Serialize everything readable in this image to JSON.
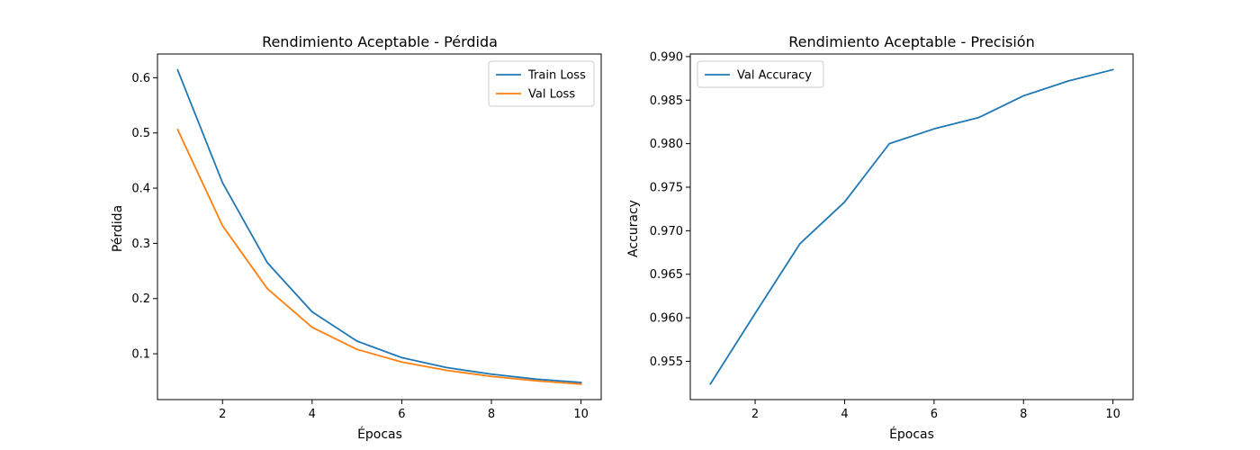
{
  "chart_data": [
    {
      "type": "line",
      "title": "Rendimiento Aceptable - Pérdida",
      "xlabel": "Épocas",
      "ylabel": "Pérdida",
      "xlim": [
        0.55,
        10.45
      ],
      "ylim": [
        0.017,
        0.643
      ],
      "xticks": [
        2,
        4,
        6,
        8,
        10
      ],
      "yticks": [
        0.1,
        0.2,
        0.3,
        0.4,
        0.5,
        0.6
      ],
      "grid": false,
      "legend_position": "top-right",
      "x": [
        1,
        2,
        3,
        4,
        5,
        6,
        7,
        8,
        9,
        10
      ],
      "series": [
        {
          "name": "Train Loss",
          "color": "#1f77b4",
          "values": [
            0.614,
            0.41,
            0.265,
            0.176,
            0.123,
            0.093,
            0.075,
            0.063,
            0.054,
            0.048
          ]
        },
        {
          "name": "Val Loss",
          "color": "#ff7f0e",
          "values": [
            0.506,
            0.332,
            0.218,
            0.148,
            0.108,
            0.085,
            0.07,
            0.059,
            0.051,
            0.045
          ]
        }
      ]
    },
    {
      "type": "line",
      "title": "Rendimiento Aceptable - Precisión",
      "xlabel": "Épocas",
      "ylabel": "Accuracy",
      "xlim": [
        0.55,
        10.45
      ],
      "ylim": [
        0.9506,
        0.9903
      ],
      "xticks": [
        2,
        4,
        6,
        8,
        10
      ],
      "yticks": [
        0.955,
        0.96,
        0.965,
        0.97,
        0.975,
        0.98,
        0.985,
        0.99
      ],
      "ytick_format": 3,
      "grid": false,
      "legend_position": "top-left",
      "x": [
        1,
        2,
        3,
        4,
        5,
        6,
        7,
        8,
        9,
        10
      ],
      "series": [
        {
          "name": "Val Accuracy",
          "color": "#1f77b4",
          "values": [
            0.9524,
            0.9605,
            0.9685,
            0.9733,
            0.98,
            0.9817,
            0.983,
            0.9855,
            0.9872,
            0.9885
          ]
        }
      ]
    }
  ]
}
